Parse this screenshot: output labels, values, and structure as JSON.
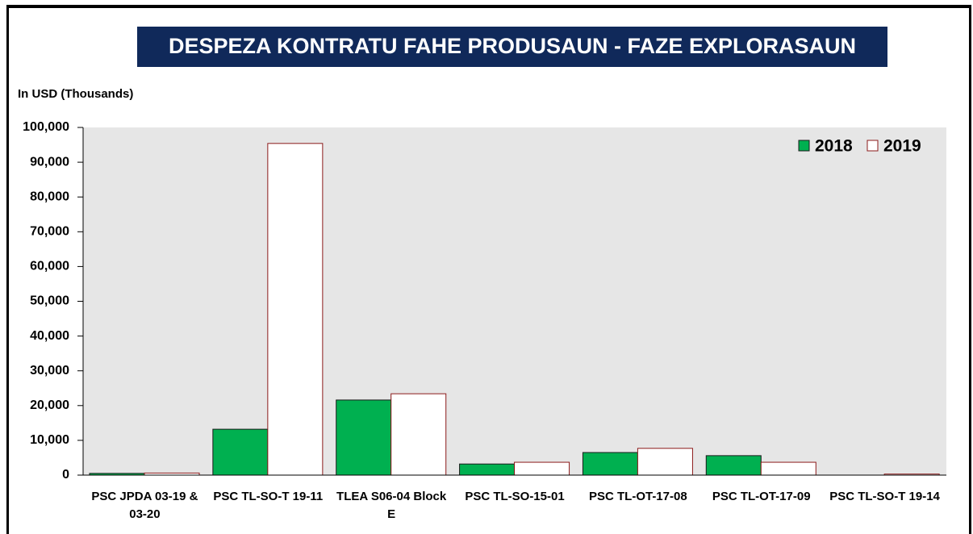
{
  "chart_data": {
    "type": "bar",
    "title": "DESPEZA KONTRATU FAHE PRODUSAUN - FAZE EXPLORASAUN",
    "y_label": "In USD (Thousands)",
    "categories": [
      "PSC JPDA 03-19 & 03-20",
      "PSC TL-SO-T 19-11",
      "TLEA S06-04 Block E",
      "PSC TL-SO-15-01",
      "PSC TL-OT-17-08",
      "PSC TL-OT-17-09",
      "PSC TL-SO-T 19-14"
    ],
    "series": [
      {
        "name": "2018",
        "color": "#00b050",
        "values": [
          500,
          13200,
          21600,
          3200,
          6500,
          5600,
          0
        ]
      },
      {
        "name": "2019",
        "color": "#ffffff",
        "values": [
          600,
          95400,
          23400,
          3700,
          7700,
          3700,
          300
        ]
      }
    ],
    "ylim": [
      0,
      100000
    ],
    "yticks": [
      0,
      {
        "value": 10000,
        "label": "10,000"
      },
      {
        "value": 20000,
        "label": "20,000"
      },
      {
        "value": 30000,
        "label": "30,000"
      },
      {
        "value": 40000,
        "label": "40,000"
      },
      {
        "value": 50000,
        "label": "50,000"
      },
      {
        "value": 60000,
        "label": "60,000"
      },
      {
        "value": 70000,
        "label": "70,000"
      },
      {
        "value": 80000,
        "label": "80,000"
      },
      {
        "value": 90000,
        "label": "90,000"
      },
      {
        "value": 100000,
        "label": "100,000"
      }
    ],
    "legend": "top-right"
  }
}
